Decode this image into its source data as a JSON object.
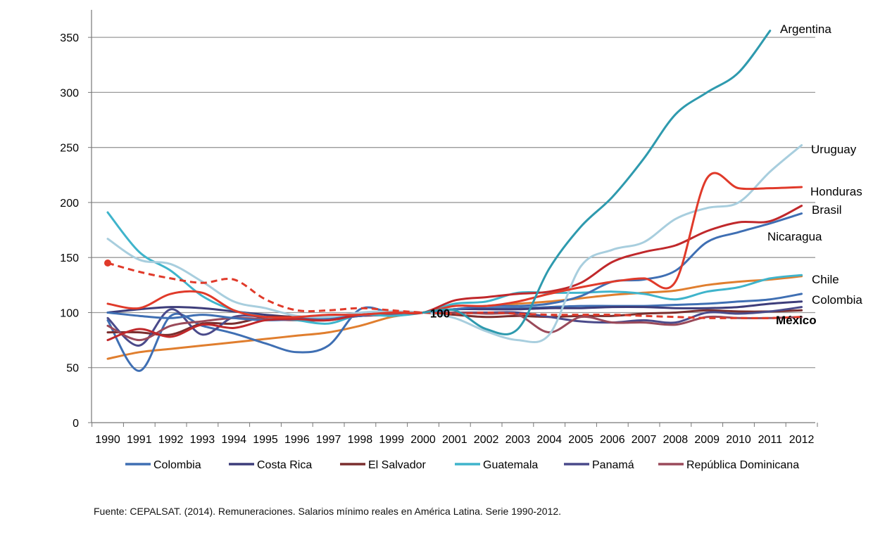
{
  "chart_data": {
    "type": "line",
    "title": "",
    "xlabel": "",
    "ylabel": "",
    "ylim": [
      0,
      375
    ],
    "yticks": [
      0,
      50,
      100,
      150,
      200,
      250,
      300,
      350
    ],
    "grid": true,
    "legend_position": "bottom",
    "x": [
      "1990",
      "1991",
      "1992",
      "1993",
      "1994",
      "1995",
      "1996",
      "1997",
      "1998",
      "1999",
      "2000",
      "2001",
      "2002",
      "2003",
      "2004",
      "2005",
      "2006",
      "2007",
      "2008",
      "2009",
      "2010",
      "2011",
      "2012"
    ],
    "center_annotation": "100",
    "series": [
      {
        "name": "Argentina",
        "color": "#2E9AAE",
        "values": [
          null,
          null,
          null,
          null,
          null,
          null,
          null,
          null,
          null,
          null,
          100,
          102,
          85,
          85,
          140,
          178,
          205,
          240,
          280,
          300,
          318,
          356,
          null
        ]
      },
      {
        "name": "Uruguay",
        "color": "#A8CEDE",
        "values": [
          167,
          148,
          144,
          128,
          110,
          104,
          97,
          96,
          100,
          101,
          100,
          95,
          83,
          75,
          80,
          142,
          157,
          164,
          185,
          195,
          200,
          228,
          252
        ]
      },
      {
        "name": "Honduras",
        "color": "#E03A2A",
        "values": [
          108,
          104,
          117,
          118,
          102,
          96,
          96,
          98,
          98,
          100,
          100,
          106,
          106,
          110,
          117,
          123,
          128,
          131,
          128,
          222,
          213,
          213,
          214
        ]
      },
      {
        "name": "Brasil",
        "color": "#C0282B",
        "values": [
          75,
          85,
          78,
          89,
          86,
          93,
          94,
          93,
          98,
          100,
          100,
          111,
          114,
          117,
          119,
          127,
          146,
          155,
          161,
          174,
          182,
          183,
          197
        ]
      },
      {
        "name": "Nicaragua",
        "color": "#3F6FB3",
        "values": [
          100,
          97,
          95,
          98,
          95,
          93,
          94,
          95,
          97,
          101,
          100,
          103,
          106,
          106,
          108,
          115,
          128,
          130,
          138,
          164,
          173,
          181,
          190
        ]
      },
      {
        "name": "Chile",
        "color": "#E07E2E",
        "values": [
          58,
          64,
          67,
          70,
          73,
          76,
          79,
          82,
          88,
          96,
          100,
          103,
          106,
          108,
          110,
          113,
          116,
          118,
          120,
          125,
          128,
          130,
          133
        ]
      },
      {
        "name": "Colombia",
        "color": "#3F6FB3",
        "values": [
          93,
          47,
          97,
          88,
          81,
          72,
          64,
          70,
          103,
          100,
          100,
          103,
          104,
          104,
          105,
          106,
          106,
          106,
          107,
          108,
          110,
          112,
          117
        ]
      },
      {
        "name": "Costa Rica",
        "color": "#3D3D7A",
        "values": [
          100,
          103,
          105,
          104,
          101,
          98,
          96,
          96,
          97,
          99,
          100,
          103,
          103,
          103,
          104,
          104,
          105,
          105,
          104,
          104,
          105,
          108,
          110
        ]
      },
      {
        "name": "El Salvador",
        "color": "#7A2E2E",
        "values": [
          82,
          82,
          80,
          90,
          90,
          96,
          96,
          95,
          97,
          98,
          100,
          98,
          96,
          97,
          96,
          97,
          97,
          99,
          100,
          102,
          101,
          101,
          102
        ]
      },
      {
        "name": "Guatemala",
        "color": "#3FB4CB",
        "values": [
          191,
          155,
          138,
          115,
          102,
          96,
          93,
          90,
          98,
          97,
          100,
          108,
          110,
          118,
          118,
          118,
          119,
          117,
          112,
          119,
          123,
          131,
          134
        ]
      },
      {
        "name": "Panamá",
        "color": "#4A4A8A",
        "values": [
          95,
          70,
          103,
          80,
          96,
          96,
          94,
          95,
          97,
          98,
          100,
          100,
          100,
          100,
          96,
          92,
          91,
          93,
          91,
          100,
          99,
          101,
          105
        ]
      },
      {
        "name": "República Dominicana",
        "color": "#9A4A5A",
        "values": [
          88,
          75,
          88,
          92,
          95,
          94,
          93,
          93,
          97,
          98,
          100,
          100,
          99,
          98,
          82,
          96,
          91,
          91,
          89,
          96,
          95,
          95,
          96
        ]
      },
      {
        "name": "México",
        "color": "#E03A2A",
        "dashed": true,
        "values": [
          145,
          137,
          131,
          127,
          130,
          112,
          102,
          102,
          104,
          102,
          100,
          99,
          100,
          99,
          98,
          98,
          98,
          97,
          96,
          95,
          95,
          95,
          96
        ]
      }
    ],
    "end_labels": {
      "Argentina": "Argentina",
      "Uruguay": "Uruguay",
      "Honduras": "Honduras",
      "Brasil": "Brasil",
      "Nicaragua": "Nicaragua",
      "Chile": "Chile",
      "Colombia": "Colombia",
      "México": "México"
    },
    "legend": [
      "Colombia",
      "Costa Rica",
      "El Salvador",
      "Guatemala",
      "Panamá",
      "República Dominicana"
    ]
  },
  "source": "Fuente: CEPALSAT. (2014). Remuneraciones. Salarios mínimo reales en América Latina. Serie 1990-2012."
}
